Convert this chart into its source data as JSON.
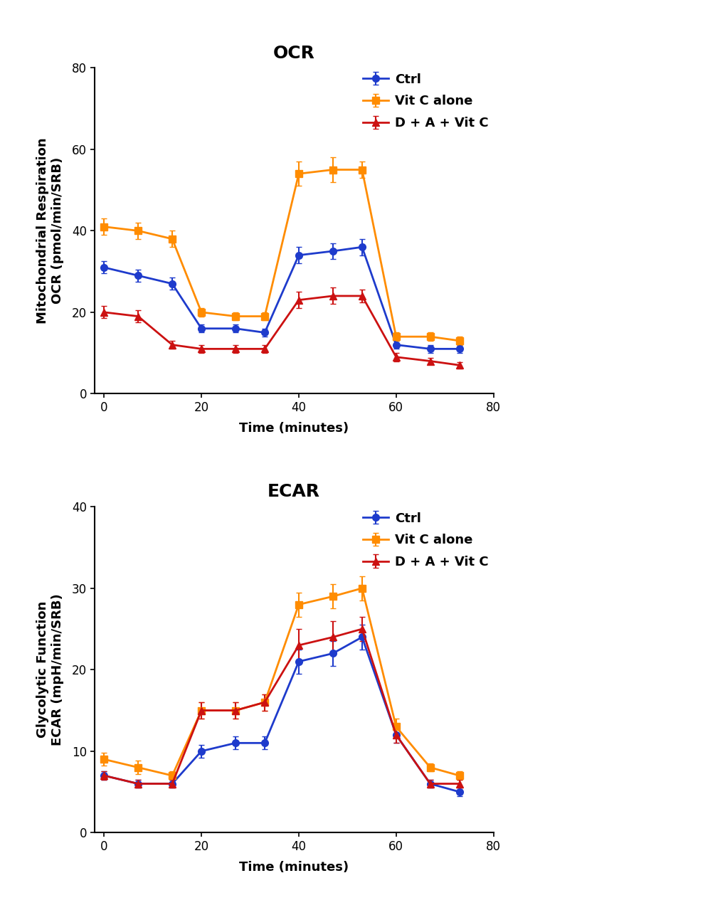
{
  "ocr": {
    "title": "OCR",
    "ylabel": "Mitochondrial Respiration\nOCR (pmol/min/SRB)",
    "xlabel": "Time (minutes)",
    "ylim": [
      0,
      80
    ],
    "yticks": [
      0,
      20,
      40,
      60,
      80
    ],
    "xlim": [
      -2,
      80
    ],
    "xticks": [
      0,
      20,
      40,
      60,
      80
    ],
    "ctrl": {
      "x": [
        0,
        7,
        14,
        20,
        27,
        33,
        40,
        47,
        53,
        60,
        67,
        73
      ],
      "y": [
        31,
        29,
        27,
        16,
        16,
        15,
        34,
        35,
        36,
        12,
        11,
        11
      ],
      "yerr": [
        1.5,
        1.5,
        1.5,
        1.0,
        1.0,
        1.0,
        2.0,
        2.0,
        2.0,
        1.0,
        1.0,
        1.0
      ],
      "color": "#1e3bcc",
      "marker": "o",
      "label": "Ctrl"
    },
    "vitc": {
      "x": [
        0,
        7,
        14,
        20,
        27,
        33,
        40,
        47,
        53,
        60,
        67,
        73
      ],
      "y": [
        41,
        40,
        38,
        20,
        19,
        19,
        54,
        55,
        55,
        14,
        14,
        13
      ],
      "yerr": [
        2.0,
        2.0,
        2.0,
        1.0,
        1.0,
        1.0,
        3.0,
        3.0,
        2.0,
        1.0,
        1.0,
        1.0
      ],
      "color": "#ff8c00",
      "marker": "s",
      "label": "Vit C alone"
    },
    "dav": {
      "x": [
        0,
        7,
        14,
        20,
        27,
        33,
        40,
        47,
        53,
        60,
        67,
        73
      ],
      "y": [
        20,
        19,
        12,
        11,
        11,
        11,
        23,
        24,
        24,
        9,
        8,
        7
      ],
      "yerr": [
        1.5,
        1.5,
        1.0,
        1.0,
        1.0,
        1.0,
        2.0,
        2.0,
        1.5,
        1.0,
        0.8,
        0.8
      ],
      "color": "#cc1111",
      "marker": "^",
      "label": "D + A + Vit C"
    }
  },
  "ecar": {
    "title": "ECAR",
    "ylabel": "Glycolytic Function\nECAR (mpH/min/SRB)",
    "xlabel": "Time (minutes)",
    "ylim": [
      0,
      40
    ],
    "yticks": [
      0,
      10,
      20,
      30,
      40
    ],
    "xlim": [
      -2,
      80
    ],
    "xticks": [
      0,
      20,
      40,
      60,
      80
    ],
    "ctrl": {
      "x": [
        0,
        7,
        14,
        20,
        27,
        33,
        40,
        47,
        53,
        60,
        67,
        73
      ],
      "y": [
        7,
        6,
        6,
        10,
        11,
        11,
        21,
        22,
        24,
        12,
        6,
        5
      ],
      "yerr": [
        0.5,
        0.5,
        0.5,
        0.8,
        0.8,
        0.8,
        1.5,
        1.5,
        1.5,
        1.0,
        0.5,
        0.5
      ],
      "color": "#1e3bcc",
      "marker": "o",
      "label": "Ctrl"
    },
    "vitc": {
      "x": [
        0,
        7,
        14,
        20,
        27,
        33,
        40,
        47,
        53,
        60,
        67,
        73
      ],
      "y": [
        9,
        8,
        7,
        15,
        15,
        16,
        28,
        29,
        30,
        13,
        8,
        7
      ],
      "yerr": [
        0.8,
        0.8,
        0.5,
        1.0,
        1.0,
        1.0,
        1.5,
        1.5,
        1.5,
        1.0,
        0.5,
        0.5
      ],
      "color": "#ff8c00",
      "marker": "s",
      "label": "Vit C alone"
    },
    "dav": {
      "x": [
        0,
        7,
        14,
        20,
        27,
        33,
        40,
        47,
        53,
        60,
        67,
        73
      ],
      "y": [
        7,
        6,
        6,
        15,
        15,
        16,
        23,
        24,
        25,
        12,
        6,
        6
      ],
      "yerr": [
        0.5,
        0.5,
        0.5,
        1.0,
        1.0,
        1.0,
        2.0,
        2.0,
        1.5,
        1.0,
        0.5,
        0.5
      ],
      "color": "#cc1111",
      "marker": "^",
      "label": "D + A + Vit C"
    }
  },
  "background_color": "#ffffff",
  "title_fontsize": 18,
  "label_fontsize": 13,
  "tick_fontsize": 12,
  "legend_fontsize": 13,
  "linewidth": 2.0,
  "markersize": 7,
  "capsize": 3,
  "elinewidth": 1.5
}
